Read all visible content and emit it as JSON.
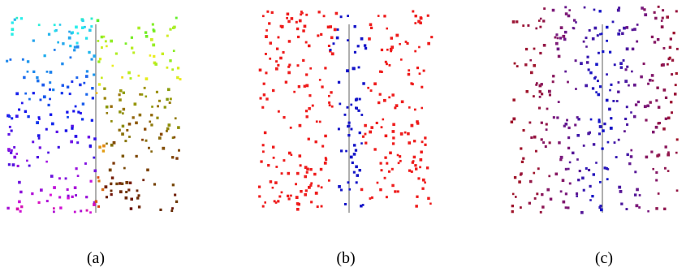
{
  "figure": {
    "panels": [
      {
        "id": "a",
        "label": "(a)",
        "coloring": "rainbow"
      },
      {
        "id": "b",
        "label": "(b)",
        "coloring": "red-blue"
      },
      {
        "id": "c",
        "label": "(c)",
        "coloring": "red-purple-blue"
      }
    ],
    "colors": {
      "red": "#ee1c1c",
      "blue": "#1515c8",
      "purple": "#7a1a7e",
      "dark_red": "#a0142a",
      "axis_line": "#7a7a7a"
    }
  }
}
